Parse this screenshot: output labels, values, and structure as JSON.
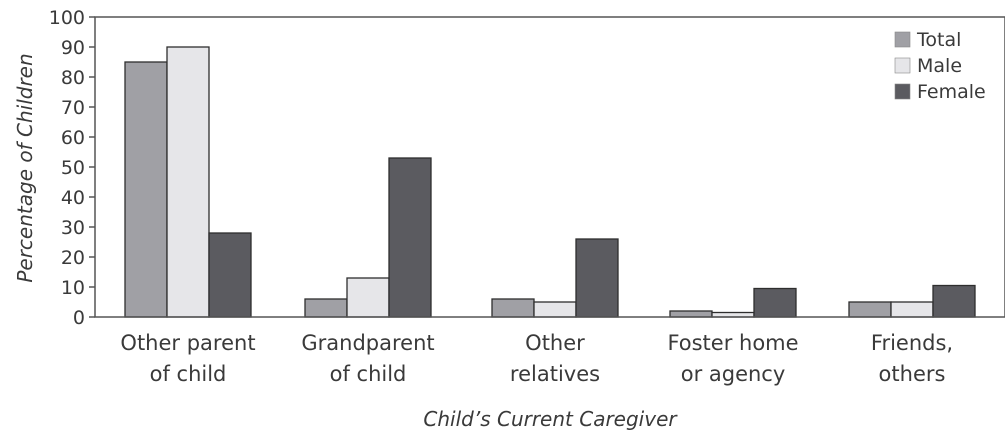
{
  "chart_data": {
    "type": "bar",
    "title": "",
    "xlabel": "Child’s Current Caregiver",
    "ylabel": "Percentage of Children",
    "ylim": [
      0,
      100
    ],
    "yticks": [
      "0",
      "10",
      "20",
      "30",
      "40",
      "50",
      "60",
      "70",
      "80",
      "90",
      "100"
    ],
    "categories": [
      [
        "Other parent",
        "of child"
      ],
      [
        "Grandparent",
        "of child"
      ],
      [
        "Other",
        "relatives"
      ],
      [
        "Foster home",
        "or agency"
      ],
      [
        "Friends,",
        "others"
      ]
    ],
    "series": [
      {
        "name": "Total",
        "color": "#a0a0a5",
        "values": [
          85,
          6,
          6,
          2,
          5
        ]
      },
      {
        "name": "Male",
        "color": "#e6e6e9",
        "values": [
          90,
          13,
          5,
          1.5,
          5
        ]
      },
      {
        "name": "Female",
        "color": "#5b5b60",
        "values": [
          28,
          53,
          26,
          9.5,
          10.5
        ]
      }
    ],
    "grid": false,
    "legend_position": "top-right"
  }
}
